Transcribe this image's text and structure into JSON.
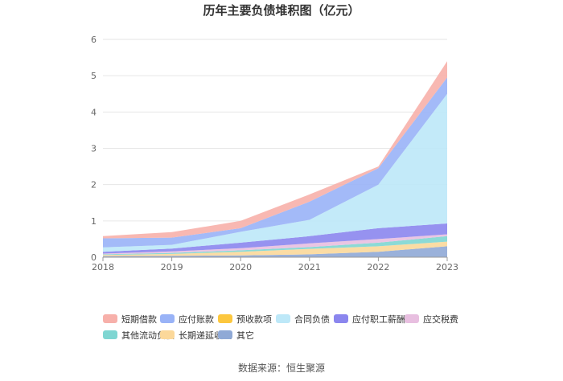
{
  "chart_data": {
    "type": "area",
    "stacked": true,
    "title": "历年主要负债堆积图（亿元）",
    "xlabel": "",
    "ylabel": "",
    "x": [
      "2018",
      "2019",
      "2020",
      "2021",
      "2022",
      "2023"
    ],
    "ylim": [
      0,
      6
    ],
    "yticks": [
      0,
      1,
      2,
      3,
      4,
      5,
      6
    ],
    "grid": true,
    "legend_position": "bottom",
    "source": "数据来源：恒生聚源",
    "series": [
      {
        "name": "其它",
        "color": "#8fa9d6",
        "values": [
          0.03,
          0.04,
          0.05,
          0.08,
          0.15,
          0.3
        ]
      },
      {
        "name": "长期递延收益",
        "color": "#fbd89a",
        "values": [
          0.03,
          0.05,
          0.1,
          0.15,
          0.15,
          0.13
        ]
      },
      {
        "name": "其他流动负债",
        "color": "#7fd6d2",
        "values": [
          0.02,
          0.03,
          0.04,
          0.05,
          0.1,
          0.15
        ]
      },
      {
        "name": "应交税费",
        "color": "#e8bfe0",
        "values": [
          0.02,
          0.04,
          0.06,
          0.1,
          0.1,
          0.05
        ]
      },
      {
        "name": "应付职工薪酬",
        "color": "#8b86ee",
        "values": [
          0.05,
          0.08,
          0.15,
          0.2,
          0.3,
          0.3
        ]
      },
      {
        "name": "合同负债",
        "color": "#bde8f8",
        "values": [
          0.12,
          0.1,
          0.3,
          0.45,
          1.2,
          3.57
        ]
      },
      {
        "name": "预收款项",
        "color": "#fcc73e",
        "values": [
          0,
          0,
          0,
          0,
          0,
          0
        ]
      },
      {
        "name": "应付账款",
        "color": "#99b3f7",
        "values": [
          0.25,
          0.2,
          0.1,
          0.5,
          0.45,
          0.45
        ]
      },
      {
        "name": "短期借款",
        "color": "#f7b0aa",
        "values": [
          0.06,
          0.15,
          0.2,
          0.2,
          0.05,
          0.45
        ]
      }
    ],
    "legend_order": [
      "短期借款",
      "应付账款",
      "预收款项",
      "合同负债",
      "应付职工薪酬",
      "应交税费",
      "其他流动负债",
      "长期递延收益",
      "其它"
    ]
  }
}
